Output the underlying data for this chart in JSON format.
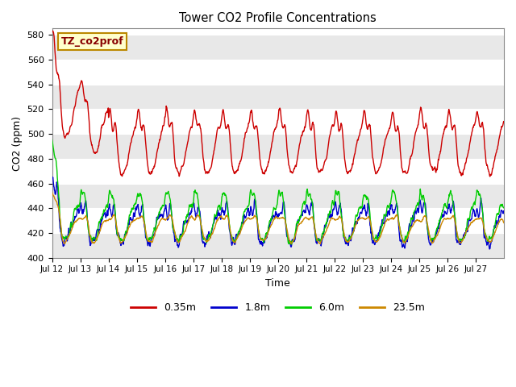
{
  "title": "Tower CO2 Profile Concentrations",
  "xlabel": "Time",
  "ylabel": "CO2 (ppm)",
  "ylim": [
    400,
    585
  ],
  "yticks": [
    400,
    420,
    440,
    460,
    480,
    500,
    520,
    540,
    560,
    580
  ],
  "annotation_text": "TZ_co2prof",
  "annotation_box_facecolor": "#ffffcc",
  "annotation_box_edgecolor": "#bb8800",
  "fig_facecolor": "#ffffff",
  "plot_bg_color": "#ffffff",
  "band_colors": [
    "#e8e8e8",
    "#ffffff"
  ],
  "lines": {
    "0.35m": {
      "color": "#cc0000",
      "lw": 1.0
    },
    "1.8m": {
      "color": "#0000cc",
      "lw": 1.0
    },
    "6.0m": {
      "color": "#00cc00",
      "lw": 1.0
    },
    "23.5m": {
      "color": "#cc8800",
      "lw": 1.0
    }
  },
  "legend_labels": [
    "0.35m",
    "1.8m",
    "6.0m",
    "23.5m"
  ],
  "legend_colors": [
    "#cc0000",
    "#0000cc",
    "#00cc00",
    "#cc8800"
  ],
  "xticklabels": [
    "Jul 12",
    "Jul 13",
    "Jul 14",
    "Jul 15",
    "Jul 16",
    "Jul 17",
    "Jul 18",
    "Jul 19",
    "Jul 20",
    "Jul 21",
    "Jul 22",
    "Jul 23",
    "Jul 24",
    "Jul 25",
    "Jul 26",
    "Jul 27"
  ],
  "seed": 12345
}
